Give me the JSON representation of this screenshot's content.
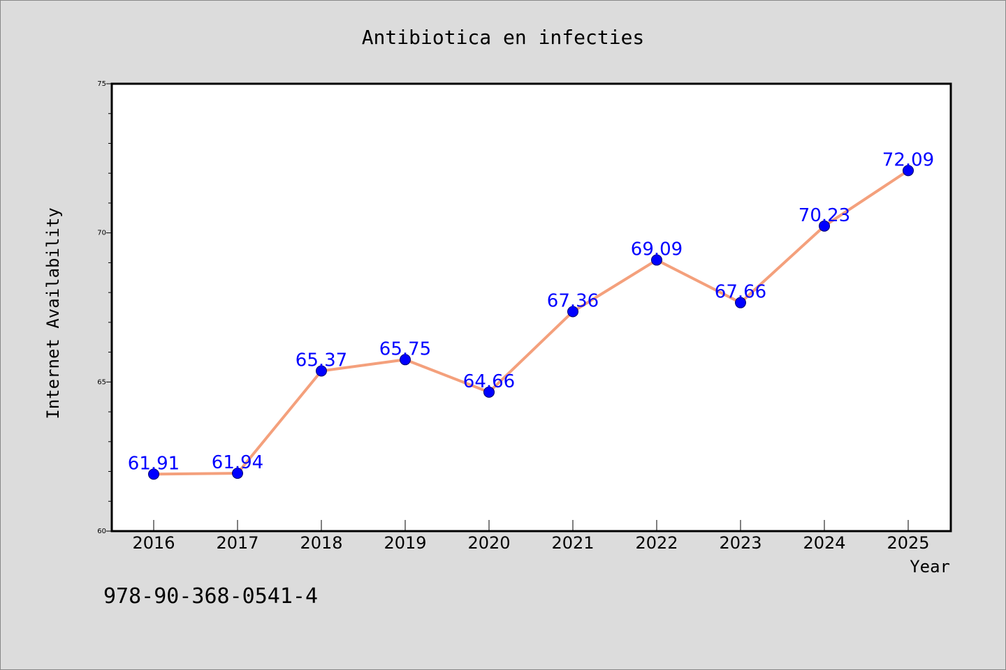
{
  "chart_data": {
    "type": "line",
    "title": "Antibiotica en infecties",
    "xlabel": "Year",
    "ylabel": "Internet Availability",
    "categories": [
      "2016",
      "2017",
      "2018",
      "2019",
      "2020",
      "2021",
      "2022",
      "2023",
      "2024",
      "2025"
    ],
    "series": [
      {
        "values": [
          61.91,
          61.94,
          65.37,
          65.75,
          64.66,
          67.36,
          69.09,
          67.66,
          70.23,
          72.09
        ]
      }
    ],
    "data_labels": [
      "61.91",
      "61.94",
      "65.37",
      "65.75",
      "64.66",
      "67.36",
      "69.09",
      "67.66",
      "70.23",
      "72.09"
    ],
    "ylim": [
      60,
      75
    ],
    "yticks": [
      "60",
      "65",
      "70",
      "75"
    ],
    "grid": false,
    "legend": "none",
    "line_color": "#f4a07c",
    "marker_color": "#0000ff",
    "label_color": "#0000ff",
    "background_color": "#dcdcdc",
    "plot_background": "#ffffff"
  },
  "footnote": "978-90-368-0541-4"
}
